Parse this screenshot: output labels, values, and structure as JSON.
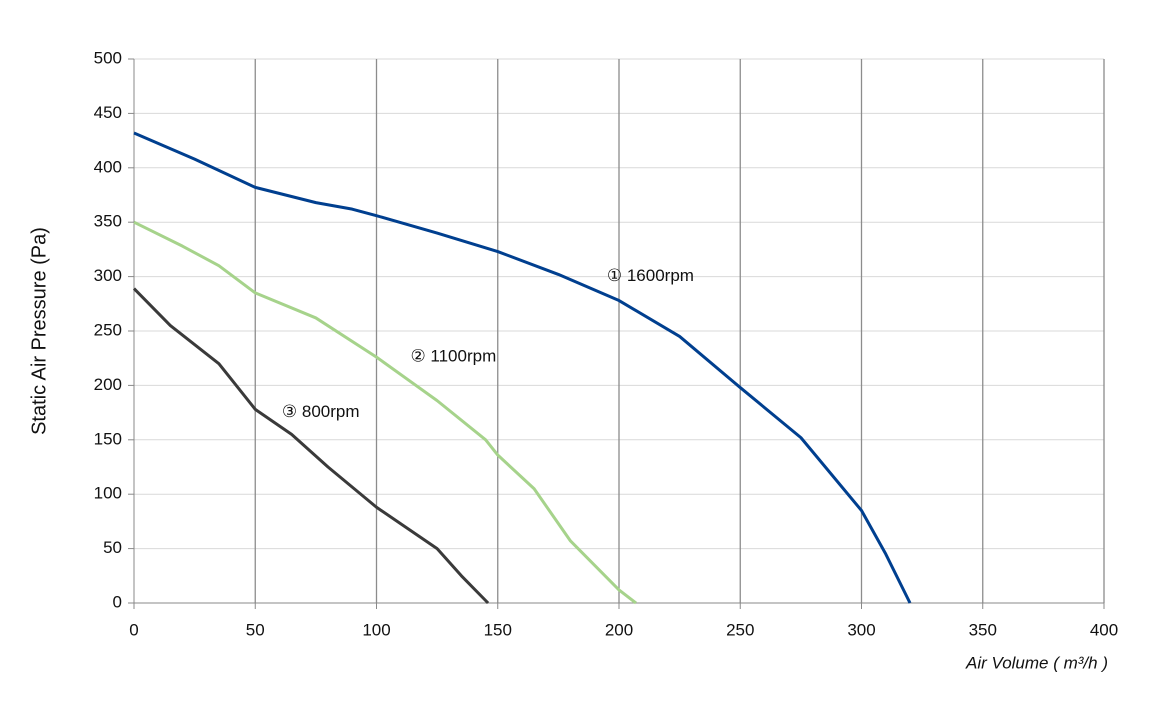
{
  "chart_data": {
    "type": "line",
    "y_label": "Static Air Pressure  (Pa)",
    "x_label": "Air Volume ( m³/h )",
    "xlim": [
      0,
      400
    ],
    "xticks": [
      0,
      50,
      100,
      150,
      200,
      250,
      300,
      350,
      400
    ],
    "ylim": [
      0,
      500
    ],
    "yticks": [
      0,
      50,
      100,
      150,
      200,
      250,
      300,
      350,
      400,
      450,
      500
    ],
    "grid": true,
    "series": [
      {
        "name": "① 1600rpm",
        "color": "#003f8f",
        "x": [
          0,
          25,
          50,
          75,
          90,
          100,
          125,
          150,
          175,
          200,
          225,
          250,
          275,
          300,
          310,
          320
        ],
        "values": [
          432,
          408,
          382,
          368,
          362,
          356,
          340,
          323,
          302,
          278,
          245,
          198,
          152,
          85,
          45,
          0
        ]
      },
      {
        "name": "② 1100rpm",
        "color": "#a6d38b",
        "x": [
          0,
          20,
          35,
          50,
          75,
          100,
          125,
          145,
          150,
          165,
          180,
          200,
          207
        ],
        "values": [
          350,
          328,
          310,
          285,
          262,
          226,
          186,
          150,
          136,
          105,
          57,
          12,
          0
        ]
      },
      {
        "name": "③ 800rpm",
        "color": "#3a3a3a",
        "x": [
          0,
          15,
          35,
          50,
          65,
          80,
          100,
          125,
          135,
          146
        ],
        "values": [
          289,
          255,
          220,
          178,
          155,
          125,
          88,
          50,
          25,
          0
        ]
      }
    ]
  }
}
